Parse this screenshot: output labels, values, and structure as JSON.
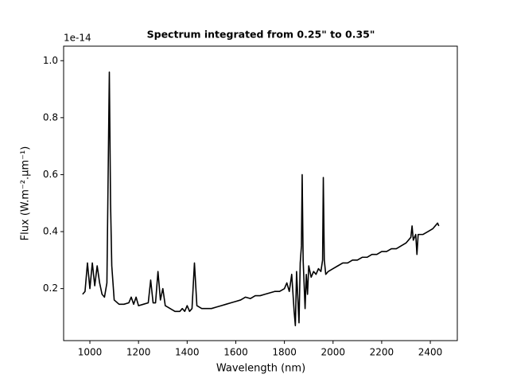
{
  "chart_data": {
    "type": "line",
    "title": "Spectrum integrated from 0.25\" to 0.35\"",
    "x_label": "Wavelength (nm)",
    "y_label": "Flux (W.m⁻².μm⁻¹)",
    "y_offset_label": "1e-14",
    "xlim": [
      892,
      2511
    ],
    "ylim": [
      0.0174,
      1.051
    ],
    "xticks": [
      1000,
      1200,
      1400,
      1600,
      1800,
      2000,
      2200,
      2400
    ],
    "yticks": [
      0.2,
      0.4,
      0.6,
      0.8,
      {
        "value": 1,
        "label": "1.0"
      }
    ],
    "x": [
      970,
      980,
      990,
      1000,
      1010,
      1020,
      1030,
      1040,
      1050,
      1060,
      1070,
      1080,
      1085,
      1090,
      1100,
      1120,
      1140,
      1160,
      1170,
      1180,
      1190,
      1200,
      1220,
      1240,
      1250,
      1260,
      1270,
      1280,
      1290,
      1300,
      1310,
      1330,
      1350,
      1370,
      1380,
      1390,
      1400,
      1410,
      1420,
      1430,
      1440,
      1460,
      1480,
      1500,
      1520,
      1540,
      1560,
      1580,
      1600,
      1620,
      1640,
      1660,
      1680,
      1700,
      1720,
      1740,
      1760,
      1780,
      1800,
      1810,
      1820,
      1830,
      1840,
      1845,
      1850,
      1860,
      1865,
      1870,
      1873,
      1877,
      1885,
      1890,
      1895,
      1900,
      1910,
      1920,
      1930,
      1940,
      1950,
      1957,
      1960,
      1964,
      1970,
      1980,
      2000,
      2020,
      2040,
      2060,
      2080,
      2100,
      2120,
      2140,
      2160,
      2180,
      2200,
      2220,
      2240,
      2260,
      2280,
      2300,
      2320,
      2325,
      2330,
      2340,
      2345,
      2350,
      2370,
      2390,
      2410,
      2430,
      2435
    ],
    "series": [
      {
        "color": "#000000",
        "values": [
          0.18,
          0.19,
          0.29,
          0.2,
          0.29,
          0.21,
          0.28,
          0.22,
          0.18,
          0.17,
          0.22,
          0.96,
          0.5,
          0.28,
          0.16,
          0.145,
          0.145,
          0.15,
          0.17,
          0.145,
          0.17,
          0.14,
          0.145,
          0.15,
          0.23,
          0.15,
          0.15,
          0.26,
          0.16,
          0.2,
          0.14,
          0.13,
          0.12,
          0.12,
          0.13,
          0.12,
          0.14,
          0.12,
          0.13,
          0.29,
          0.14,
          0.13,
          0.13,
          0.13,
          0.135,
          0.14,
          0.145,
          0.15,
          0.155,
          0.16,
          0.17,
          0.165,
          0.175,
          0.175,
          0.18,
          0.185,
          0.19,
          0.19,
          0.2,
          0.22,
          0.19,
          0.25,
          0.12,
          0.07,
          0.26,
          0.08,
          0.29,
          0.35,
          0.6,
          0.3,
          0.13,
          0.25,
          0.18,
          0.28,
          0.24,
          0.26,
          0.25,
          0.27,
          0.26,
          0.3,
          0.59,
          0.3,
          0.25,
          0.26,
          0.27,
          0.28,
          0.29,
          0.29,
          0.3,
          0.3,
          0.31,
          0.31,
          0.32,
          0.32,
          0.33,
          0.33,
          0.34,
          0.34,
          0.35,
          0.36,
          0.38,
          0.42,
          0.37,
          0.39,
          0.32,
          0.39,
          0.39,
          0.4,
          0.41,
          0.43,
          0.42
        ]
      }
    ]
  }
}
